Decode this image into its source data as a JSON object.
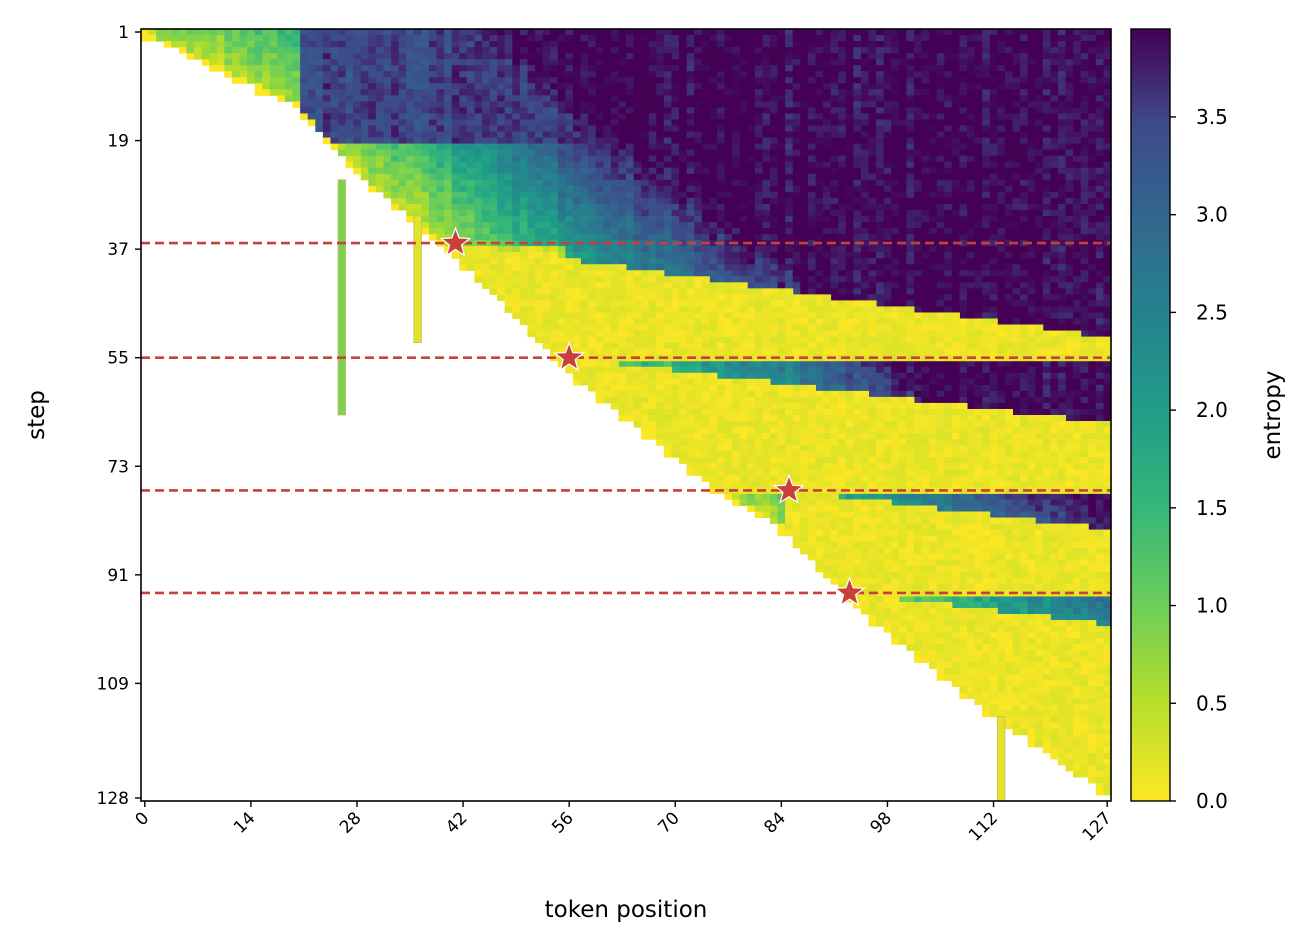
{
  "chart_data": {
    "type": "heatmap",
    "xlabel": "token position",
    "ylabel": "step",
    "colorbar_label": "entropy",
    "colormap": "viridis_r",
    "x_ticks": [
      0,
      14,
      28,
      42,
      56,
      70,
      84,
      98,
      112,
      127
    ],
    "y_ticks": [
      1,
      19,
      37,
      55,
      73,
      91,
      109,
      128
    ],
    "colorbar_ticks": [
      "0.0",
      "0.5",
      "1.0",
      "1.5",
      "2.0",
      "2.5",
      "3.0",
      "3.5"
    ],
    "x_range": [
      0,
      127
    ],
    "y_range": [
      1,
      128
    ],
    "value_range": [
      0,
      3.95
    ],
    "n_positions": 128,
    "n_steps": 128,
    "commit_boundary": [
      {
        "x": 0,
        "step": 1
      },
      {
        "x": 20,
        "step": 13
      },
      {
        "x": 28,
        "step": 24
      },
      {
        "x": 42,
        "step": 39
      },
      {
        "x": 56,
        "step": 57
      },
      {
        "x": 75,
        "step": 76
      },
      {
        "x": 84,
        "step": 83
      },
      {
        "x": 94,
        "step": 96
      },
      {
        "x": 112,
        "step": 114
      },
      {
        "x": 127,
        "step": 127
      }
    ],
    "stars": [
      {
        "x": 41,
        "step": 36
      },
      {
        "x": 56,
        "step": 55
      },
      {
        "x": 85,
        "step": 77
      },
      {
        "x": 93,
        "step": 94
      }
    ],
    "hlines": [
      36,
      55,
      77,
      94
    ],
    "annotation_color": "#c9403a",
    "spikes": [
      {
        "x": 26,
        "from_step": 26,
        "to_step": 64,
        "value": 0.9
      },
      {
        "x": 36,
        "from_step": 32,
        "to_step": 52,
        "value": 0.2
      },
      {
        "x": 113,
        "from_step": 115,
        "to_step": 128,
        "value": 0.2
      }
    ]
  }
}
